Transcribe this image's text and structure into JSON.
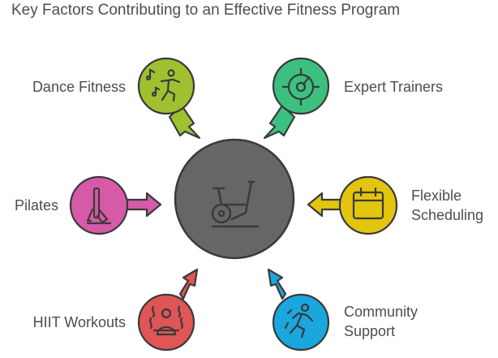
{
  "title": "Key Factors Contributing to an Effective Fitness Program",
  "center": {
    "icon": "exercise-bike-icon",
    "color": "#666666"
  },
  "factors": [
    {
      "key": "dance",
      "label": "Dance Fitness",
      "icon": "dancer-icon",
      "color": "#9fc130"
    },
    {
      "key": "trainers",
      "label": "Expert Trainers",
      "icon": "gauge-target-icon",
      "color": "#3cc07f"
    },
    {
      "key": "pilates",
      "label": "Pilates",
      "icon": "pilates-equipment-icon",
      "color": "#d65aa8"
    },
    {
      "key": "scheduling",
      "label_line1": "Flexible",
      "label_line2": "Scheduling",
      "icon": "calendar-icon",
      "color": "#e3c50d"
    },
    {
      "key": "hiit",
      "label": "HIIT Workouts",
      "icon": "sweating-person-icon",
      "color": "#e05555"
    },
    {
      "key": "community",
      "label_line1": "Community",
      "label_line2": "Support",
      "icon": "running-person-icon",
      "color": "#1aa7de"
    }
  ]
}
